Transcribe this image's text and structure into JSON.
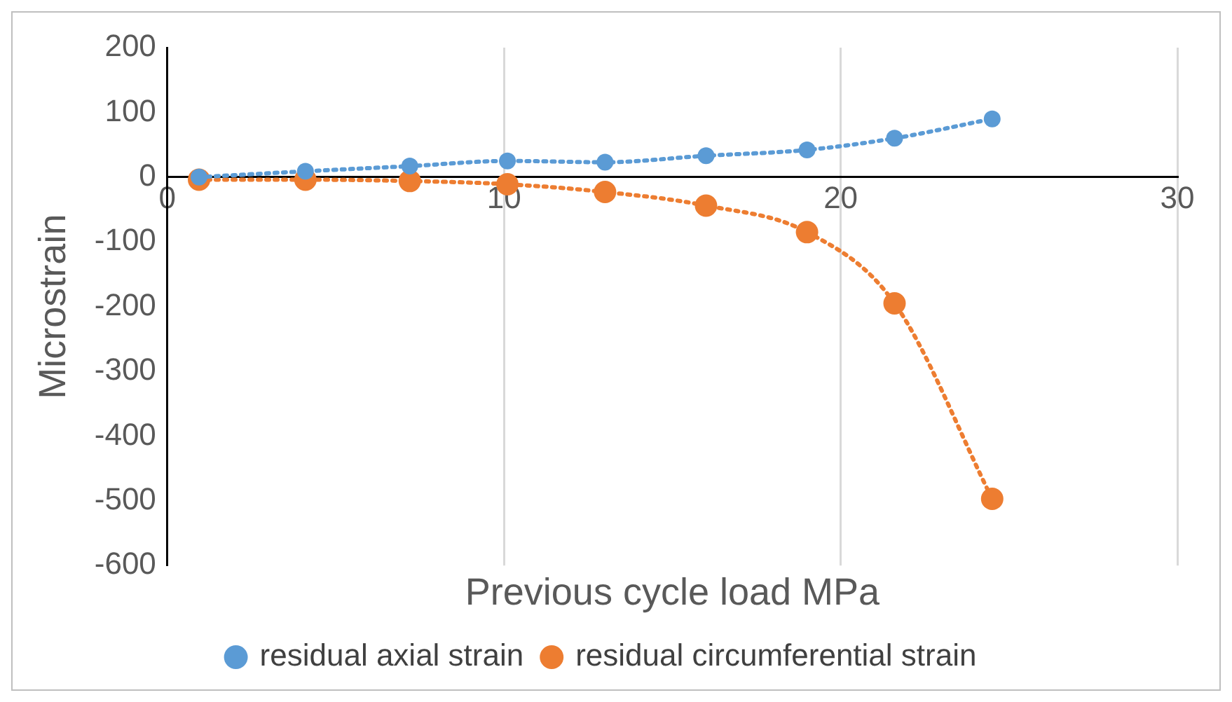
{
  "chart_data": {
    "type": "line",
    "xlabel": "Previous cycle load MPa",
    "ylabel": "Microstrain",
    "xlim": [
      0,
      30
    ],
    "xticks": [
      0,
      10,
      20,
      30
    ],
    "ylim": [
      -600,
      200
    ],
    "yticks": [
      -600,
      -500,
      -400,
      -300,
      -200,
      -100,
      0,
      100,
      200
    ],
    "grid": "x",
    "legend": "bottom",
    "marker": "circle",
    "line_style": "dotted",
    "series": [
      {
        "name": "residual axial strain",
        "color": "#5b9bd5",
        "x": [
          0.94,
          4.1,
          7.2,
          10.1,
          13,
          16,
          19,
          21.6,
          24.5
        ],
        "values": [
          0,
          9,
          17,
          25,
          23,
          33,
          42,
          60,
          90
        ]
      },
      {
        "name": "residual circumferential strain",
        "color": "#ed7d31",
        "x": [
          0.94,
          4.1,
          7.2,
          10.1,
          13,
          16,
          19,
          21.6,
          24.5
        ],
        "values": [
          -4,
          -4,
          -6,
          -11,
          -23,
          -44,
          -85,
          -195,
          -497
        ]
      }
    ]
  }
}
